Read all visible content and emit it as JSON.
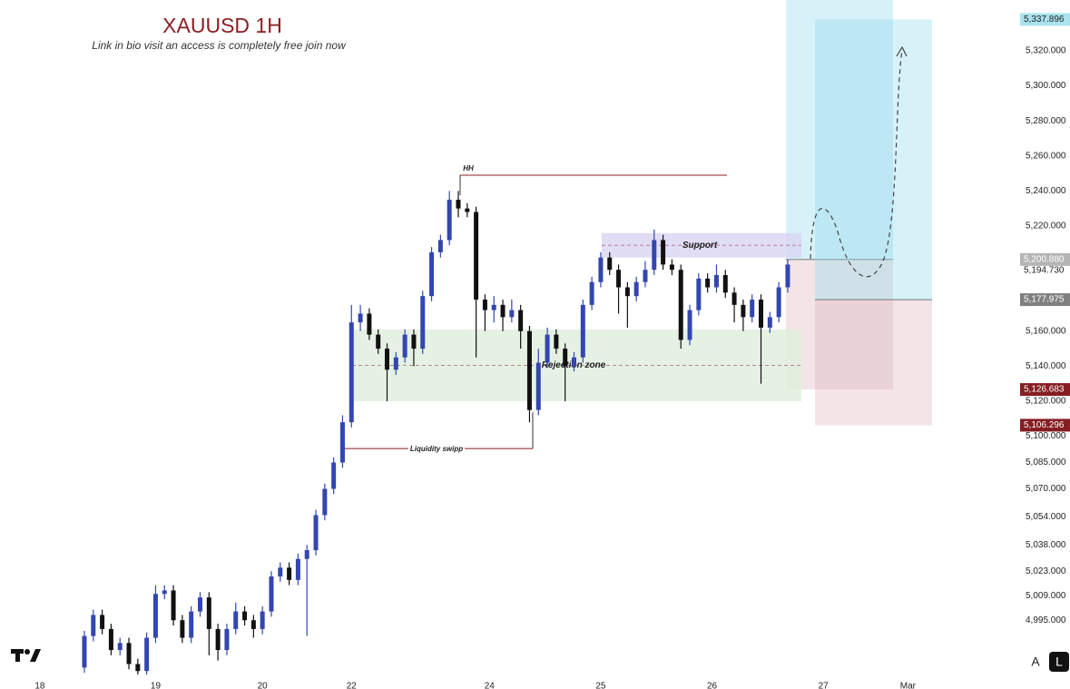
{
  "chart_data": {
    "type": "candlestick",
    "title": "XAUUSD 1H",
    "subtitle": "Link in bio visit an access is completely free join now",
    "up_color": "#3346b0",
    "down_color": "#111111",
    "open": [
      4968,
      4986,
      4998,
      4990,
      4978,
      4982,
      4970,
      4966,
      4985,
      5010,
      5012,
      4995,
      4985,
      5000,
      5008,
      4990,
      4978,
      4990,
      5000,
      4995,
      4990,
      5000,
      5020,
      5025,
      5018,
      5030,
      5035,
      5055,
      5070,
      5085,
      5108,
      5165,
      5170,
      5158,
      5150,
      5138,
      5145,
      5158,
      5150,
      5180,
      5205,
      5212,
      5235,
      5230,
      5228,
      5178,
      5172,
      5175,
      5168,
      5172,
      5160,
      5115,
      5142,
      5158,
      5150,
      5140,
      5145,
      5175,
      5188,
      5202,
      5195,
      5185,
      5180,
      5188,
      5195,
      5212,
      5198,
      5195,
      5155,
      5172,
      5190,
      5185,
      5192,
      5182,
      5175,
      5168,
      5178,
      5162,
      5168,
      5185
    ],
    "high": [
      4989,
      5001,
      5001,
      4993,
      4985,
      4985,
      4973,
      4988,
      5015,
      5015,
      5015,
      4998,
      5003,
      5011,
      5011,
      4993,
      4993,
      5005,
      5003,
      4998,
      5003,
      5023,
      5028,
      5028,
      5033,
      5038,
      5058,
      5073,
      5088,
      5112,
      5175,
      5175,
      5173,
      5161,
      5153,
      5148,
      5161,
      5161,
      5183,
      5208,
      5215,
      5240,
      5240,
      5233,
      5231,
      5181,
      5180,
      5178,
      5178,
      5175,
      5163,
      5150,
      5162,
      5161,
      5153,
      5148,
      5178,
      5191,
      5205,
      5205,
      5198,
      5188,
      5191,
      5200,
      5218,
      5215,
      5201,
      5198,
      5175,
      5193,
      5193,
      5198,
      5195,
      5185,
      5178,
      5181,
      5181,
      5171,
      5188,
      5201
    ],
    "low": [
      4965,
      4983,
      4987,
      4975,
      4975,
      4967,
      4964,
      4964,
      4982,
      5007,
      4992,
      4982,
      4982,
      4997,
      4975,
      4972,
      4975,
      4987,
      4992,
      4985,
      4987,
      4997,
      5017,
      5015,
      5015,
      4986,
      5032,
      5052,
      5067,
      5082,
      5105,
      5160,
      5155,
      5147,
      5120,
      5135,
      5142,
      5140,
      5147,
      5177,
      5202,
      5209,
      5225,
      5225,
      5145,
      5160,
      5165,
      5160,
      5165,
      5150,
      5108,
      5112,
      5139,
      5147,
      5120,
      5137,
      5142,
      5172,
      5185,
      5192,
      5170,
      5162,
      5177,
      5185,
      5192,
      5195,
      5192,
      5150,
      5152,
      5169,
      5182,
      5182,
      5179,
      5165,
      5160,
      5165,
      5130,
      5159,
      5165,
      5182
    ],
    "close": [
      4986,
      4998,
      4990,
      4978,
      4982,
      4970,
      4966,
      4985,
      5010,
      5012,
      4995,
      4985,
      5000,
      5008,
      4990,
      4978,
      4990,
      5000,
      4995,
      4990,
      5000,
      5020,
      5025,
      5018,
      5030,
      5035,
      5055,
      5070,
      5085,
      5108,
      5165,
      5170,
      5158,
      5150,
      5138,
      5145,
      5158,
      5150,
      5180,
      5205,
      5212,
      5235,
      5230,
      5228,
      5178,
      5172,
      5175,
      5168,
      5172,
      5160,
      5115,
      5142,
      5158,
      5150,
      5140,
      5145,
      5175,
      5188,
      5202,
      5195,
      5185,
      5180,
      5188,
      5195,
      5212,
      5198,
      5195,
      5155,
      5172,
      5190,
      5185,
      5192,
      5182,
      5175,
      5168,
      5178,
      5162,
      5168,
      5185,
      5198
    ],
    "xlim": [
      -8,
      105
    ],
    "xticks": [
      {
        "value": -5,
        "label": "18"
      },
      {
        "value": 8,
        "label": "19"
      },
      {
        "value": 20,
        "label": "20"
      },
      {
        "value": 30,
        "label": "22"
      },
      {
        "value": 45.5,
        "label": "24"
      },
      {
        "value": 58,
        "label": "25"
      },
      {
        "value": 70.5,
        "label": "26"
      },
      {
        "value": 83,
        "label": "27"
      },
      {
        "value": 92.5,
        "label": "Mar"
      }
    ],
    "ylim": [
      4963,
      5349
    ],
    "yticks": [
      {
        "value": 5320,
        "label": "5,320.000"
      },
      {
        "value": 5300,
        "label": "5,300.000"
      },
      {
        "value": 5280,
        "label": "5,280.000"
      },
      {
        "value": 5260,
        "label": "5,260.000"
      },
      {
        "value": 5240,
        "label": "5,240.000"
      },
      {
        "value": 5220,
        "label": "5,220.000"
      },
      {
        "value": 5160,
        "label": "5,160.000"
      },
      {
        "value": 5140,
        "label": "5,140.000"
      },
      {
        "value": 5120,
        "label": "5,120.000"
      },
      {
        "value": 5100,
        "label": "5,100.000"
      },
      {
        "value": 5085,
        "label": "5,085.000"
      },
      {
        "value": 5070,
        "label": "5,070.000"
      },
      {
        "value": 5054,
        "label": "5,054.000"
      },
      {
        "value": 5038,
        "label": "5,038.000"
      },
      {
        "value": 5023,
        "label": "5,023.000"
      },
      {
        "value": 5009,
        "label": "5,009.000"
      },
      {
        "value": 4995,
        "label": "4,995.000"
      }
    ],
    "levels": [
      {
        "label": "HH",
        "value": 5249
      },
      {
        "label": "Liquidity swipp",
        "value": 5093
      }
    ],
    "zones": [
      {
        "label": "Support",
        "low": 5202,
        "high": 5216,
        "color": "#d9d4f2"
      },
      {
        "label": "Rejection zone",
        "low": 5120,
        "high": 5161,
        "color": "#deefdc"
      }
    ],
    "last_price": {
      "value": 5194.73,
      "label": "5,194.730"
    },
    "positions": [
      {
        "entry": {
          "value": 5200.88,
          "label": "5,200.880"
        },
        "stop": {
          "value": 5126.683,
          "label": "5,126.683"
        }
      },
      {
        "target": {
          "value": 5337.896,
          "label": "5,337.896"
        },
        "entry": {
          "value": 5177.975,
          "label": "5,177.975"
        },
        "stop": {
          "value": 5106.296,
          "label": "5,106.296"
        }
      }
    ]
  },
  "ui": {
    "buttons": [
      "A",
      "L"
    ]
  }
}
